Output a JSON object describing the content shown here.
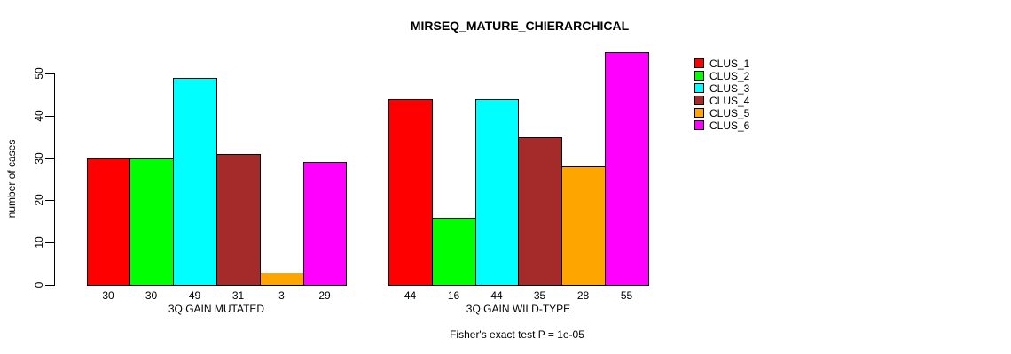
{
  "chart_data": {
    "type": "bar",
    "title": "MIRSEQ_MATURE_CHIERARCHICAL",
    "ylabel": "number of cases",
    "xlabel": "",
    "annotation": "Fisher's exact test P = 1e-05",
    "categories": [
      "3Q GAIN MUTATED",
      "3Q GAIN WILD-TYPE"
    ],
    "series": [
      {
        "name": "CLUS_1",
        "color": "#FF0000",
        "values": [
          30,
          44
        ]
      },
      {
        "name": "CLUS_2",
        "color": "#00FF00",
        "values": [
          30,
          16
        ]
      },
      {
        "name": "CLUS_3",
        "color": "#00FFFF",
        "values": [
          49,
          44
        ]
      },
      {
        "name": "CLUS_4",
        "color": "#A52A2A",
        "values": [
          31,
          35
        ]
      },
      {
        "name": "CLUS_5",
        "color": "#FFA500",
        "values": [
          3,
          28
        ]
      },
      {
        "name": "CLUS_6",
        "color": "#FF00FF",
        "values": [
          29,
          55
        ]
      }
    ],
    "ylim": [
      0,
      55
    ],
    "yticks": [
      0,
      10,
      20,
      30,
      40,
      50
    ],
    "grid": false,
    "bar_value_labels_shown": true,
    "legend_position": "right",
    "axis_color": "#000000",
    "background_color": "#FFFFFF"
  }
}
